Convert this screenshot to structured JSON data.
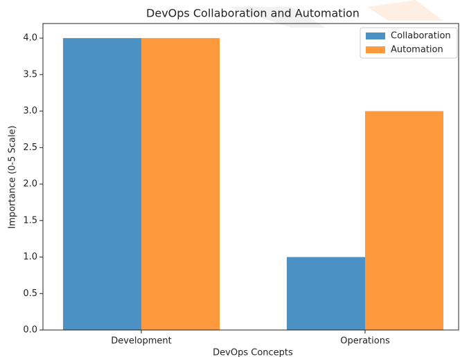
{
  "chart_data": {
    "type": "bar",
    "title": "DevOps Collaboration and Automation",
    "x_label": "DevOps Concepts",
    "y_label": "Importance (0-5 Scale)",
    "categories": [
      "Development",
      "Operations"
    ],
    "series": [
      {
        "name": "Collaboration",
        "color": "#4c91c3",
        "values": [
          4,
          1
        ]
      },
      {
        "name": "Automation",
        "color": "#ff993e",
        "values": [
          4,
          3
        ]
      }
    ],
    "ylim": [
      0,
      4.2
    ],
    "yticks": [
      {
        "value": 0,
        "label": "0.0"
      },
      0.5,
      {
        "value": 1,
        "label": "1.0"
      },
      1.5,
      {
        "value": 2,
        "label": "2.0"
      },
      2.5,
      {
        "value": 3,
        "label": "3.0"
      },
      3.5,
      {
        "value": 4,
        "label": "4.0"
      }
    ],
    "legend": "upper right"
  }
}
